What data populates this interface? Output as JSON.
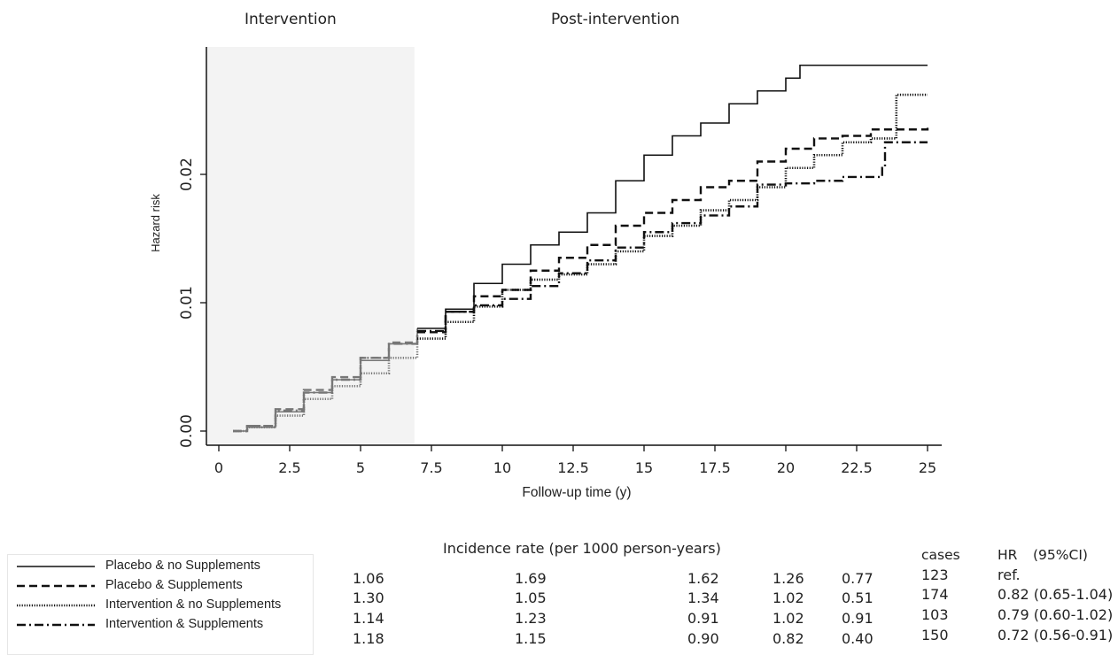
{
  "phases": {
    "left": "Intervention",
    "right": "Post-intervention"
  },
  "chart_data": {
    "type": "line",
    "title": "",
    "xlabel": "Follow-up time (y)",
    "ylabel": "Hazard risk",
    "xlim": [
      0,
      25
    ],
    "ylim": [
      0,
      0.03
    ],
    "xticks": [
      "0",
      "2.5",
      "5",
      "7.5",
      "10",
      "12.5",
      "15",
      "17.5",
      "20",
      "22.5",
      "25"
    ],
    "yticks": [
      "0.00",
      "0.01",
      "0.02"
    ],
    "shaded_interval_x": [
      0,
      6.9
    ],
    "series": [
      {
        "name": "Placebo & no Supplements",
        "style": "solid",
        "x": [
          0.5,
          1,
          2,
          3,
          4,
          5,
          6,
          7,
          8,
          9,
          10,
          11,
          12,
          13,
          14,
          15,
          16,
          17,
          18,
          19,
          20,
          20.5,
          20.9,
          25
        ],
        "y": [
          0,
          0.0003,
          0.0015,
          0.003,
          0.004,
          0.0055,
          0.0068,
          0.008,
          0.0095,
          0.0115,
          0.013,
          0.0145,
          0.0155,
          0.017,
          0.0195,
          0.0215,
          0.023,
          0.024,
          0.0255,
          0.0265,
          0.0275,
          0.0285,
          0.0285,
          0.0285
        ]
      },
      {
        "name": "Placebo & Supplements",
        "style": "dashed",
        "x": [
          0.5,
          1,
          2,
          3,
          4,
          5,
          6,
          7,
          8,
          9,
          10,
          11,
          12,
          13,
          14,
          15,
          16,
          17,
          18,
          19,
          20,
          21,
          22,
          23,
          25
        ],
        "y": [
          0,
          0.0004,
          0.0017,
          0.0032,
          0.0042,
          0.0057,
          0.0069,
          0.0077,
          0.0093,
          0.0105,
          0.011,
          0.0125,
          0.0135,
          0.0145,
          0.016,
          0.017,
          0.018,
          0.019,
          0.0195,
          0.021,
          0.022,
          0.0228,
          0.023,
          0.0235,
          0.0237
        ]
      },
      {
        "name": "Intervention & no Supplements",
        "style": "dotted",
        "x": [
          0.5,
          1,
          2,
          3,
          4,
          5,
          6,
          7,
          8,
          9,
          10,
          11,
          12,
          13,
          14,
          15,
          16,
          17,
          18,
          19,
          20,
          21,
          22,
          23,
          23.9,
          25
        ],
        "y": [
          0,
          0.0003,
          0.0012,
          0.0025,
          0.0035,
          0.0045,
          0.0057,
          0.0072,
          0.0085,
          0.0097,
          0.011,
          0.0118,
          0.0122,
          0.013,
          0.014,
          0.0152,
          0.016,
          0.0172,
          0.018,
          0.019,
          0.0205,
          0.0215,
          0.0225,
          0.0228,
          0.0262,
          0.0262
        ]
      },
      {
        "name": "Intervention & Supplements",
        "style": "dashdot",
        "x": [
          0.5,
          1,
          2,
          3,
          4,
          5,
          6,
          7,
          8,
          9,
          10,
          11,
          12,
          13,
          14,
          15,
          16,
          17,
          18,
          19,
          20,
          21,
          22,
          23.4,
          23.5,
          25
        ],
        "y": [
          0,
          0.0004,
          0.0016,
          0.003,
          0.004,
          0.0057,
          0.0068,
          0.0078,
          0.0093,
          0.0098,
          0.0103,
          0.0113,
          0.0123,
          0.0133,
          0.0143,
          0.0155,
          0.0162,
          0.0168,
          0.0175,
          0.0192,
          0.0193,
          0.0195,
          0.0198,
          0.0205,
          0.0225,
          0.0225
        ]
      }
    ]
  },
  "table": {
    "title": "Incidence rate (per 1000 person-years)",
    "headers": {
      "cases": "cases",
      "hr": "HR",
      "ci": "(95%CI)"
    },
    "rows": [
      {
        "label": "Placebo & no Supplements",
        "rates": [
          "1.06",
          "1.69",
          "1.62",
          "1.26",
          "0.77"
        ],
        "cases": "123",
        "hr": "ref."
      },
      {
        "label": "Placebo & Supplements",
        "rates": [
          "1.30",
          "1.05",
          "1.34",
          "1.02",
          "0.51"
        ],
        "cases": "174",
        "hr": "0.82 (0.65-1.04)"
      },
      {
        "label": "Intervention & no Supplements",
        "rates": [
          "1.14",
          "1.23",
          "0.91",
          "1.02",
          "0.91"
        ],
        "cases": "103",
        "hr": "0.79 (0.60-1.02)"
      },
      {
        "label": "Intervention & Supplements",
        "rates": [
          "1.18",
          "1.15",
          "0.90",
          "0.82",
          "0.40"
        ],
        "cases": "150",
        "hr": "0.72 (0.56-0.91)"
      }
    ]
  }
}
